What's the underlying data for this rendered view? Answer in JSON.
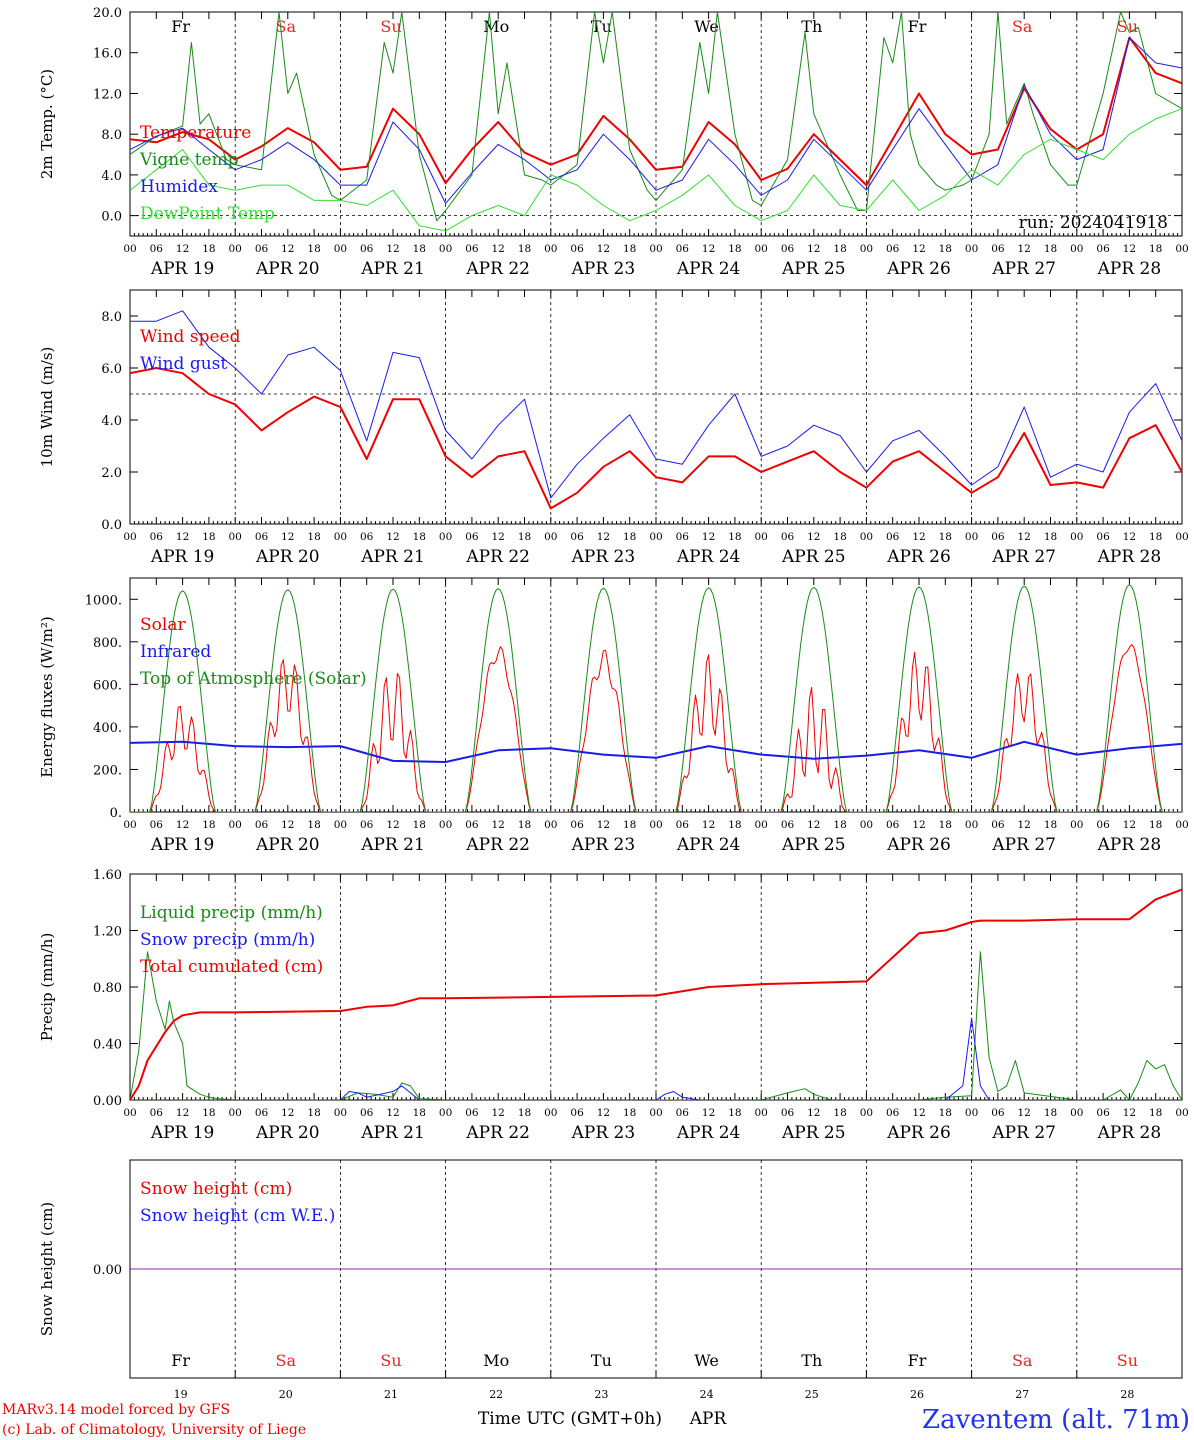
{
  "footer": {
    "credit_line1": "MARv3.14 model forced by GFS",
    "credit_line2": "(c) Lab. of Climatology, University of Liege",
    "xaxis_title": "Time UTC (GMT+0h)",
    "month": "APR",
    "station": "Zaventem (alt. 71m)"
  },
  "colors": {
    "red": "#ee0000",
    "green": "#1a8a1a",
    "blue": "#1a1aee",
    "lightgreen": "#33dd33",
    "purple": "#8a2bb0",
    "weekend": "#ee2222",
    "weekday": "#000000"
  },
  "days": [
    "APR 19",
    "APR 20",
    "APR 21",
    "APR 22",
    "APR 23",
    "APR 24",
    "APR 25",
    "APR 26",
    "APR 27",
    "APR 28"
  ],
  "day_numbers": [
    "19",
    "20",
    "21",
    "22",
    "23",
    "24",
    "25",
    "26",
    "27",
    "28"
  ],
  "weekdays": [
    {
      "label": "Fr",
      "weekend": false
    },
    {
      "label": "Sa",
      "weekend": true
    },
    {
      "label": "Su",
      "weekend": true
    },
    {
      "label": "Mo",
      "weekend": false
    },
    {
      "label": "Tu",
      "weekend": false
    },
    {
      "label": "We",
      "weekend": false
    },
    {
      "label": "Th",
      "weekend": false
    },
    {
      "label": "Fr",
      "weekend": false
    },
    {
      "label": "Sa",
      "weekend": true
    },
    {
      "label": "Su",
      "weekend": true
    }
  ],
  "hour_ticks": [
    "00",
    "06",
    "12",
    "18"
  ],
  "chart_data": [
    {
      "type": "line",
      "id": "temp",
      "ylabel": "2m Temp. (°C)",
      "ylim": [
        -2,
        20
      ],
      "yticks": [
        "20.0",
        "16.0",
        "12.0",
        "8.0",
        "4.0",
        "0.0"
      ],
      "ytick_values": [
        20,
        16,
        12,
        8,
        4,
        0
      ],
      "reference_line": 0,
      "annotation": "run: 2024041918",
      "x_unit": "hours since APR 19 00 UTC",
      "series": [
        {
          "name": "Temperature",
          "color": "red",
          "width": 2,
          "x": [
            0,
            6,
            12,
            18,
            24,
            30,
            36,
            42,
            48,
            54,
            60,
            66,
            72,
            78,
            84,
            90,
            96,
            102,
            108,
            114,
            120,
            126,
            132,
            138,
            144,
            150,
            156,
            162,
            168,
            174,
            180,
            186,
            192,
            198,
            204,
            210,
            216,
            222,
            228,
            234,
            240
          ],
          "y": [
            7.5,
            7.2,
            8.2,
            7.5,
            5.5,
            6.8,
            8.6,
            7.2,
            4.5,
            4.8,
            10.5,
            8.0,
            3.2,
            6.5,
            9.2,
            6.2,
            5.0,
            6.0,
            9.8,
            7.5,
            4.5,
            4.8,
            9.2,
            7.0,
            3.5,
            4.6,
            8.0,
            5.5,
            3.0,
            7.5,
            12.0,
            8.0,
            6.0,
            6.5,
            12.5,
            8.5,
            6.5,
            8.0,
            17.5,
            14.0,
            13.0
          ]
        },
        {
          "name": "Vigne temp",
          "color": "green",
          "width": 1,
          "x": [
            0,
            6,
            12,
            14,
            16,
            18,
            22,
            24,
            30,
            34,
            36,
            38,
            42,
            46,
            48,
            54,
            58,
            60,
            62,
            66,
            70,
            72,
            78,
            82,
            84,
            86,
            90,
            94,
            96,
            102,
            106,
            108,
            110,
            114,
            118,
            120,
            126,
            130,
            132,
            134,
            138,
            142,
            144,
            150,
            154,
            156,
            158,
            162,
            166,
            168,
            172,
            174,
            176,
            178,
            180,
            184,
            186,
            190,
            192,
            196,
            198,
            200,
            204,
            206,
            210,
            214,
            216,
            222,
            226,
            228,
            230,
            234,
            240
          ],
          "y": [
            6,
            7.8,
            8.8,
            17.0,
            9.0,
            10.0,
            5.5,
            5.0,
            4.5,
            20.0,
            12.0,
            14.0,
            6.0,
            2.0,
            1.5,
            3.5,
            17.0,
            14.0,
            20.0,
            6.0,
            -0.5,
            0.5,
            4.0,
            20.0,
            10.0,
            15.0,
            4.0,
            3.5,
            3.0,
            5.0,
            20.0,
            15.0,
            20.0,
            6.5,
            2.5,
            1.5,
            4.5,
            17.0,
            12.0,
            20.0,
            8.0,
            1.5,
            1.0,
            5.5,
            18.0,
            10.0,
            8.0,
            4.0,
            0.5,
            0.5,
            17.5,
            15.0,
            20.0,
            8.0,
            5.0,
            3.0,
            2.5,
            3.0,
            3.5,
            8.0,
            20.0,
            9.0,
            13.0,
            10.0,
            5.0,
            3.0,
            3.0,
            12.0,
            20.0,
            18.0,
            18.5,
            12.0,
            10.5
          ]
        },
        {
          "name": "Humidex",
          "color": "blue",
          "width": 1,
          "x": [
            0,
            6,
            12,
            18,
            24,
            30,
            36,
            42,
            48,
            54,
            60,
            66,
            72,
            78,
            84,
            90,
            96,
            102,
            108,
            114,
            120,
            126,
            132,
            138,
            144,
            150,
            156,
            162,
            168,
            174,
            180,
            186,
            192,
            198,
            204,
            210,
            216,
            222,
            228,
            234,
            240
          ],
          "y": [
            6.5,
            7.8,
            8.6,
            6.5,
            4.5,
            5.5,
            7.2,
            5.5,
            3.0,
            3.0,
            9.2,
            6.5,
            1.2,
            4.2,
            7.0,
            5.5,
            3.5,
            4.5,
            8.0,
            5.5,
            2.5,
            3.5,
            7.5,
            5.0,
            2.0,
            3.5,
            7.5,
            5.0,
            2.5,
            6.5,
            10.5,
            7.0,
            3.5,
            5.0,
            12.8,
            8.0,
            5.5,
            6.5,
            17.5,
            15.0,
            14.5
          ]
        },
        {
          "name": "DewPoint Temp",
          "color": "lightgreen",
          "width": 1,
          "x": [
            0,
            6,
            12,
            18,
            24,
            30,
            36,
            42,
            48,
            54,
            60,
            66,
            72,
            78,
            84,
            90,
            96,
            102,
            108,
            114,
            120,
            126,
            132,
            138,
            144,
            150,
            156,
            162,
            168,
            174,
            180,
            186,
            192,
            198,
            204,
            210,
            216,
            222,
            228,
            234,
            240
          ],
          "y": [
            2.5,
            4.5,
            6.5,
            3.0,
            2.5,
            3.0,
            3.0,
            1.5,
            1.5,
            1.0,
            2.5,
            -1.0,
            -1.5,
            0.0,
            1.0,
            0.0,
            4.0,
            3.0,
            1.0,
            -0.5,
            0.5,
            2.0,
            4.0,
            1.0,
            -0.5,
            0.5,
            4.0,
            1.0,
            0.5,
            3.5,
            0.5,
            2.0,
            4.5,
            3.0,
            6.0,
            7.5,
            6.5,
            5.5,
            8.0,
            9.5,
            10.5
          ]
        }
      ]
    },
    {
      "type": "line",
      "id": "wind",
      "ylabel": "10m Wind (m/s)",
      "ylim": [
        0,
        9
      ],
      "yticks": [
        "8.0",
        "6.0",
        "4.0",
        "2.0",
        "0.0"
      ],
      "ytick_values": [
        8,
        6,
        4,
        2,
        0
      ],
      "reference_line": 5,
      "x_unit": "hours since APR 19 00 UTC",
      "series": [
        {
          "name": "Wind speed",
          "color": "red",
          "width": 2,
          "x": [
            0,
            6,
            12,
            18,
            24,
            30,
            36,
            42,
            48,
            54,
            60,
            66,
            72,
            78,
            84,
            90,
            96,
            102,
            108,
            114,
            120,
            126,
            132,
            138,
            144,
            150,
            156,
            162,
            168,
            174,
            180,
            186,
            192,
            198,
            204,
            210,
            216,
            222,
            228,
            234,
            240
          ],
          "y": [
            5.8,
            6.0,
            5.8,
            5.0,
            4.6,
            3.6,
            4.3,
            4.9,
            4.5,
            2.5,
            4.8,
            4.8,
            2.6,
            1.8,
            2.6,
            2.8,
            0.6,
            1.2,
            2.2,
            2.8,
            1.8,
            1.6,
            2.6,
            2.6,
            2.0,
            2.4,
            2.8,
            2.0,
            1.4,
            2.4,
            2.8,
            2.0,
            1.2,
            1.8,
            3.5,
            1.5,
            1.6,
            1.4,
            3.3,
            3.8,
            2.0
          ]
        },
        {
          "name": "Wind gust",
          "color": "blue",
          "width": 1,
          "x": [
            0,
            6,
            12,
            18,
            24,
            30,
            36,
            42,
            48,
            54,
            60,
            66,
            72,
            78,
            84,
            90,
            96,
            102,
            108,
            114,
            120,
            126,
            132,
            138,
            144,
            150,
            156,
            162,
            168,
            174,
            180,
            186,
            192,
            198,
            204,
            210,
            216,
            222,
            228,
            234,
            240
          ],
          "y": [
            7.8,
            7.8,
            8.2,
            6.8,
            6.0,
            5.0,
            6.5,
            6.8,
            5.9,
            3.2,
            6.6,
            6.4,
            3.6,
            2.5,
            3.8,
            4.8,
            1.0,
            2.3,
            3.3,
            4.2,
            2.5,
            2.3,
            3.8,
            5.0,
            2.6,
            3.0,
            3.8,
            3.4,
            2.0,
            3.2,
            3.6,
            2.6,
            1.5,
            2.2,
            4.5,
            1.8,
            2.3,
            2.0,
            4.3,
            5.4,
            3.2
          ]
        }
      ]
    },
    {
      "type": "line",
      "id": "energy",
      "ylabel": "Energy fluxes (W/m²)",
      "ylim": [
        0,
        1100
      ],
      "yticks": [
        "1000.",
        "800.",
        "600.",
        "400.",
        "200.",
        "0."
      ],
      "ytick_values": [
        1000,
        800,
        600,
        400,
        200,
        0
      ],
      "x_unit": "hours since APR 19 00 UTC",
      "series": [
        {
          "name": "Solar",
          "color": "red",
          "width": 1,
          "peaks": [
            520,
            760,
            700,
            790,
            770,
            750,
            600,
            780,
            700,
            800
          ],
          "noon_dip": [
            0.55,
            0.6,
            0.45,
            0.9,
            0.85,
            0.5,
            0.3,
            0.55,
            0.6,
            0.95
          ]
        },
        {
          "name": "Infrared",
          "color": "blue",
          "width": 2,
          "x": [
            0,
            12,
            24,
            36,
            48,
            60,
            72,
            84,
            96,
            108,
            120,
            132,
            144,
            156,
            168,
            180,
            192,
            204,
            216,
            228,
            240
          ],
          "y": [
            325,
            330,
            310,
            305,
            310,
            240,
            235,
            290,
            300,
            270,
            255,
            310,
            270,
            250,
            265,
            290,
            255,
            330,
            270,
            300,
            320
          ]
        },
        {
          "name": "Top of Atmosphere (Solar)",
          "color": "green",
          "width": 1,
          "peaks": [
            1040,
            1045,
            1048,
            1050,
            1052,
            1054,
            1056,
            1058,
            1062,
            1068
          ]
        }
      ]
    },
    {
      "type": "line",
      "id": "precip",
      "ylabel": "Precip (mm/h)",
      "ylim": [
        0,
        1.6
      ],
      "yticks": [
        "1.60",
        "1.20",
        "0.80",
        "0.40",
        "0.00"
      ],
      "ytick_values": [
        1.6,
        1.2,
        0.8,
        0.4,
        0.0
      ],
      "x_unit": "hours since APR 19 00 UTC",
      "series": [
        {
          "name": "Liquid precip (mm/h)",
          "color": "green",
          "width": 1,
          "x": [
            0,
            2,
            4,
            6,
            8,
            9,
            10,
            12,
            13,
            14,
            16,
            18,
            20,
            24,
            48,
            52,
            56,
            60,
            62,
            64,
            66,
            72,
            96,
            144,
            150,
            154,
            156,
            160,
            168,
            180,
            186,
            192,
            194,
            196,
            198,
            200,
            202,
            204,
            216,
            222,
            226,
            228,
            230,
            232,
            234,
            236,
            238,
            240
          ],
          "y": [
            0,
            0.35,
            1.05,
            0.7,
            0.5,
            0.7,
            0.55,
            0.4,
            0.1,
            0.08,
            0.04,
            0.02,
            0.01,
            0,
            0,
            0.05,
            0.04,
            0.02,
            0.12,
            0.1,
            0.01,
            0,
            0,
            0,
            0.05,
            0.08,
            0.04,
            0,
            0,
            0,
            0.02,
            0.03,
            1.05,
            0.3,
            0.06,
            0.1,
            0.28,
            0.05,
            0,
            0,
            0.07,
            0,
            0.12,
            0.28,
            0.22,
            0.25,
            0.1,
            0
          ]
        },
        {
          "name": "Snow precip (mm/h)",
          "color": "blue",
          "width": 1,
          "x": [
            0,
            48,
            50,
            52,
            54,
            60,
            62,
            64,
            66,
            72,
            120,
            122,
            124,
            126,
            130,
            144,
            186,
            190,
            192,
            194,
            196,
            200,
            240
          ],
          "y": [
            0,
            0,
            0.06,
            0.05,
            0.02,
            0.06,
            0.1,
            0.05,
            0,
            0,
            0,
            0.04,
            0.06,
            0.02,
            0,
            0,
            0,
            0.1,
            0.58,
            0.1,
            0,
            0,
            0
          ]
        },
        {
          "name": "Total cumulated (cm)",
          "color": "red",
          "width": 2,
          "x": [
            0,
            2,
            4,
            6,
            8,
            10,
            12,
            14,
            16,
            18,
            24,
            48,
            54,
            60,
            66,
            72,
            96,
            120,
            132,
            144,
            156,
            168,
            180,
            186,
            192,
            194,
            196,
            200,
            204,
            216,
            228,
            234,
            240
          ],
          "y": [
            0,
            0.1,
            0.28,
            0.38,
            0.48,
            0.56,
            0.6,
            0.61,
            0.62,
            0.62,
            0.62,
            0.63,
            0.66,
            0.67,
            0.72,
            0.72,
            0.73,
            0.74,
            0.8,
            0.82,
            0.83,
            0.84,
            1.18,
            1.2,
            1.26,
            1.27,
            1.27,
            1.27,
            1.27,
            1.28,
            1.28,
            1.42,
            1.49
          ]
        }
      ]
    },
    {
      "type": "line",
      "id": "snow",
      "ylabel": "Snow height (cm)",
      "yticks": [
        "0.00"
      ],
      "ytick_values": [
        0
      ],
      "x_unit": "hours since APR 19 00 UTC",
      "series": [
        {
          "name": "Snow height (cm)",
          "color": "red",
          "width": 1,
          "x": [
            0,
            240
          ],
          "y": [
            0,
            0
          ]
        },
        {
          "name": "Snow height (cm W.E.)",
          "color": "blue",
          "width": 1,
          "x": [
            0,
            240
          ],
          "y": [
            0,
            0
          ]
        }
      ]
    }
  ]
}
